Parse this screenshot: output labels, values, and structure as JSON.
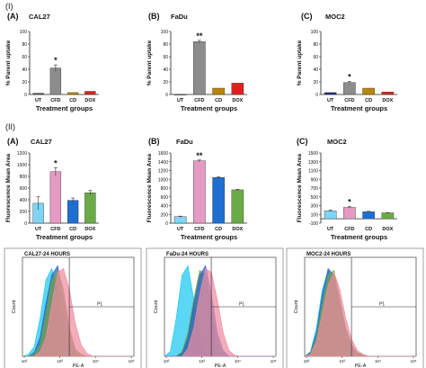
{
  "sections": {
    "i": "(I)",
    "ii": "(II)"
  },
  "chart_data": [
    {
      "type": "bar",
      "panel": "(A)",
      "title": "CAL27",
      "ylabel": "% Parent uptake",
      "xlabel": "Treatment groups",
      "categories": [
        "UT",
        "CFD",
        "CD",
        "DOX"
      ],
      "values": [
        2,
        42,
        3,
        5
      ],
      "ylim": [
        0,
        100
      ],
      "yticks": [
        0,
        20,
        40,
        60,
        80,
        100
      ],
      "colors": [
        "#555555",
        "#8c8c8c",
        "#b8860b",
        "#e02020"
      ],
      "annotations": [
        {
          "category": "CFD",
          "text": "*"
        }
      ],
      "errors": [
        0,
        5,
        0,
        0
      ]
    },
    {
      "type": "bar",
      "panel": "(B)",
      "title": "FaDu",
      "ylabel": "% Parent uptake",
      "xlabel": "Treatment groups",
      "categories": [
        "UT",
        "CFD",
        "CD",
        "DOX"
      ],
      "values": [
        0,
        84,
        10,
        18
      ],
      "ylim": [
        0,
        100
      ],
      "yticks": [
        0,
        20,
        40,
        60,
        80,
        100
      ],
      "colors": [
        "#555555",
        "#8c8c8c",
        "#b8860b",
        "#e02020"
      ],
      "annotations": [
        {
          "category": "CFD",
          "text": "**"
        }
      ],
      "errors": [
        0,
        2,
        0,
        0
      ]
    },
    {
      "type": "bar",
      "panel": "(C)",
      "title": "MOC2",
      "ylabel": "% Parent uptake",
      "xlabel": "Treatment groups",
      "categories": [
        "UT",
        "CFD",
        "CD",
        "DOX"
      ],
      "values": [
        3,
        19,
        10,
        4
      ],
      "ylim": [
        0,
        100
      ],
      "yticks": [
        0,
        20,
        40,
        60,
        80,
        100
      ],
      "colors": [
        "#1f2a80",
        "#8c8c8c",
        "#b8860b",
        "#e02020"
      ],
      "annotations": [
        {
          "category": "CFD",
          "text": "*"
        }
      ],
      "errors": [
        0,
        2,
        0,
        0
      ]
    },
    {
      "type": "bar",
      "panel": "(A)",
      "title": "CAL27",
      "ylabel": "Fluorescence Mean Area",
      "xlabel": "Treatment groups",
      "categories": [
        "UT",
        "CFD",
        "CD",
        "DOX"
      ],
      "values": [
        340,
        880,
        390,
        520
      ],
      "ylim": [
        0,
        1200
      ],
      "yticks": [
        0,
        200,
        400,
        600,
        800,
        1000,
        1200
      ],
      "colors": [
        "#7fd4f4",
        "#e59ac4",
        "#1e6fd0",
        "#6bab45"
      ],
      "annotations": [
        {
          "category": "CFD",
          "text": "*"
        }
      ],
      "errors": [
        110,
        70,
        40,
        40
      ]
    },
    {
      "type": "bar",
      "panel": "(B)",
      "title": "FaDu",
      "ylabel": "Fluorescence Mean Area",
      "xlabel": "Treatment groups",
      "categories": [
        "UT",
        "CFD",
        "CD",
        "DOX"
      ],
      "values": [
        150,
        1420,
        1040,
        760
      ],
      "ylim": [
        0,
        1600
      ],
      "yticks": [
        0,
        200,
        400,
        600,
        800,
        1000,
        1200,
        1400,
        1600
      ],
      "colors": [
        "#7fd4f4",
        "#e59ac4",
        "#1e6fd0",
        "#6bab45"
      ],
      "annotations": [
        {
          "category": "CFD",
          "text": "**"
        }
      ],
      "errors": [
        10,
        20,
        15,
        12
      ]
    },
    {
      "type": "bar",
      "panel": "(C)",
      "title": "MOC2",
      "ylabel": "Fluorescence Mean Area",
      "xlabel": "Treatment groups",
      "categories": [
        "UT",
        "CFD",
        "CD",
        "DOX"
      ],
      "values": [
        180,
        260,
        160,
        135
      ],
      "ylim": [
        -100,
        1500
      ],
      "yticks": [
        -100,
        100,
        300,
        500,
        700,
        900,
        1100,
        1300,
        1500
      ],
      "colors": [
        "#7fd4f4",
        "#e59ac4",
        "#1e6fd0",
        "#6bab45"
      ],
      "annotations": [
        {
          "category": "CFD",
          "text": "*"
        }
      ],
      "errors": [
        15,
        20,
        10,
        8
      ]
    },
    {
      "type": "area",
      "title": "CAL27-24 HOURS",
      "xlabel": "PE-A",
      "ylabel": "Count",
      "gate": "P1",
      "xticks": [
        "10²",
        "10³",
        "10⁴",
        "10⁵"
      ],
      "series": [
        {
          "color": "#19c8f0",
          "values": [
            0,
            2,
            10,
            40,
            80,
            92,
            70,
            35,
            10,
            3,
            0,
            0,
            0,
            0,
            0,
            0,
            0,
            0,
            0,
            0
          ]
        },
        {
          "color": "#2060d0",
          "values": [
            0,
            0,
            4,
            20,
            55,
            85,
            95,
            60,
            25,
            6,
            1,
            0,
            0,
            0,
            0,
            0,
            0,
            0,
            0,
            0
          ]
        },
        {
          "color": "#7aa23a",
          "values": [
            0,
            0,
            2,
            12,
            45,
            80,
            90,
            70,
            30,
            8,
            2,
            0,
            0,
            0,
            0,
            0,
            0,
            0,
            0,
            0
          ]
        },
        {
          "color": "#f08aa0",
          "values": [
            0,
            0,
            0,
            5,
            20,
            55,
            88,
            92,
            70,
            35,
            12,
            3,
            0,
            0,
            0,
            0,
            0,
            0,
            0,
            0
          ]
        }
      ]
    },
    {
      "type": "area",
      "title": "FaDu-24 HOURS",
      "xlabel": "PE-A",
      "ylabel": "Count",
      "gate": "P1",
      "xticks": [
        "10²",
        "10³",
        "10⁴",
        "10⁵"
      ],
      "series": [
        {
          "color": "#19c8f0",
          "values": [
            0,
            5,
            40,
            85,
            95,
            60,
            20,
            5,
            0,
            0,
            0,
            0,
            0,
            0,
            0,
            0,
            0,
            0,
            0,
            0
          ]
        },
        {
          "color": "#7aa23a",
          "values": [
            0,
            0,
            0,
            5,
            25,
            60,
            90,
            85,
            50,
            15,
            3,
            0,
            0,
            0,
            0,
            0,
            0,
            0,
            0,
            0
          ]
        },
        {
          "color": "#2060d0",
          "values": [
            0,
            0,
            0,
            3,
            20,
            55,
            85,
            95,
            65,
            25,
            6,
            0,
            0,
            0,
            0,
            0,
            0,
            0,
            0,
            0
          ]
        },
        {
          "color": "#f08aa0",
          "values": [
            0,
            0,
            0,
            0,
            8,
            30,
            65,
            92,
            88,
            60,
            25,
            6,
            1,
            0,
            0,
            0,
            0,
            0,
            0,
            0
          ]
        }
      ]
    },
    {
      "type": "area",
      "title": "MOC2-24 HOURS",
      "xlabel": "PE-A",
      "ylabel": "Count",
      "gate": "P1",
      "xticks": [
        "10²",
        "10³",
        "10⁴",
        "10⁵"
      ],
      "series": [
        {
          "color": "#19c8f0",
          "values": [
            0,
            5,
            30,
            70,
            90,
            80,
            50,
            25,
            10,
            3,
            0,
            0,
            0,
            0,
            0,
            0,
            0,
            0,
            0,
            0
          ]
        },
        {
          "color": "#2060d0",
          "values": [
            0,
            4,
            25,
            65,
            92,
            85,
            55,
            28,
            12,
            4,
            1,
            0,
            0,
            0,
            0,
            0,
            0,
            0,
            0,
            0
          ]
        },
        {
          "color": "#7aa23a",
          "values": [
            0,
            3,
            20,
            55,
            85,
            90,
            60,
            30,
            12,
            4,
            1,
            0,
            0,
            0,
            0,
            0,
            0,
            0,
            0,
            0
          ]
        },
        {
          "color": "#f08aa0",
          "values": [
            0,
            2,
            15,
            45,
            75,
            88,
            70,
            40,
            18,
            6,
            2,
            0,
            0,
            0,
            0,
            0,
            0,
            0,
            0,
            0
          ]
        }
      ]
    }
  ]
}
